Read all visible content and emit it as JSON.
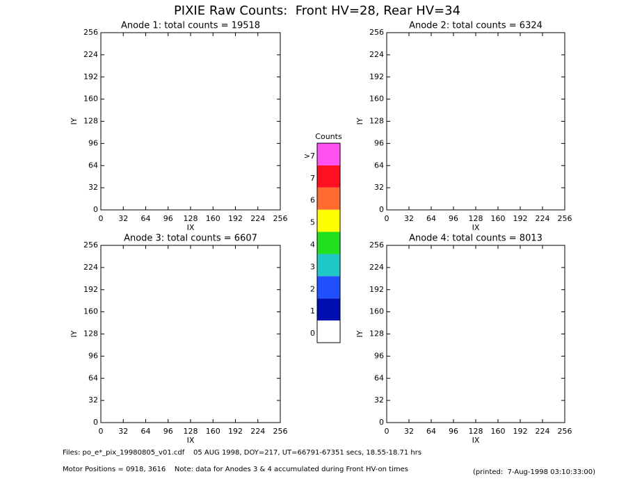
{
  "title": "PIXIE Raw Counts:  Front HV=28, Rear HV=34",
  "chart_data": [
    {
      "type": "heatmap",
      "title": "Anode 1: total counts = 19518",
      "xlabel": "IX",
      "ylabel": "IY",
      "xlim": [
        0,
        256
      ],
      "ylim": [
        0,
        256
      ],
      "xticks": [
        0,
        32,
        64,
        96,
        128,
        160,
        192,
        224,
        256
      ],
      "yticks": [
        0,
        32,
        64,
        96,
        128,
        160,
        192,
        224,
        256
      ]
    },
    {
      "type": "heatmap",
      "title": "Anode 2: total counts = 6324",
      "xlabel": "IX",
      "ylabel": "IY",
      "xlim": [
        0,
        256
      ],
      "ylim": [
        0,
        256
      ],
      "xticks": [
        0,
        32,
        64,
        96,
        128,
        160,
        192,
        224,
        256
      ],
      "yticks": [
        0,
        32,
        64,
        96,
        128,
        160,
        192,
        224,
        256
      ]
    },
    {
      "type": "heatmap",
      "title": "Anode 3: total counts = 6607",
      "xlabel": "IX",
      "ylabel": "IY",
      "xlim": [
        0,
        256
      ],
      "ylim": [
        0,
        256
      ],
      "xticks": [
        0,
        32,
        64,
        96,
        128,
        160,
        192,
        224,
        256
      ],
      "yticks": [
        0,
        32,
        64,
        96,
        128,
        160,
        192,
        224,
        256
      ]
    },
    {
      "type": "heatmap",
      "title": "Anode 4: total counts = 8013",
      "xlabel": "IX",
      "ylabel": "IY",
      "xlim": [
        0,
        256
      ],
      "ylim": [
        0,
        256
      ],
      "xticks": [
        0,
        32,
        64,
        96,
        128,
        160,
        192,
        224,
        256
      ],
      "yticks": [
        0,
        32,
        64,
        96,
        128,
        160,
        192,
        224,
        256
      ]
    }
  ],
  "colorbar": {
    "title": "Counts",
    "ticks": [
      0,
      1,
      2,
      3,
      4,
      5,
      6,
      7,
      {
        "value": 8,
        "label": ">7"
      }
    ],
    "colors": [
      "#ffffff",
      "#0010b0",
      "#2050ff",
      "#20c8c8",
      "#20e020",
      "#ffff00",
      "#ff6a30",
      "#ff1020",
      "#ff50f0"
    ]
  },
  "footer": {
    "files": "Files: po_e*_pix_19980805_v01.cdf    05 AUG 1998, DOY=217, UT=66791-67351 secs, 18.55-18.71 hrs",
    "motor": "Motor Positions = 0918, 3616    Note: data for Anodes 3 & 4 accumulated during Front HV-on times",
    "printed": "(printed:  7-Aug-1998 03:10:33:00)"
  }
}
